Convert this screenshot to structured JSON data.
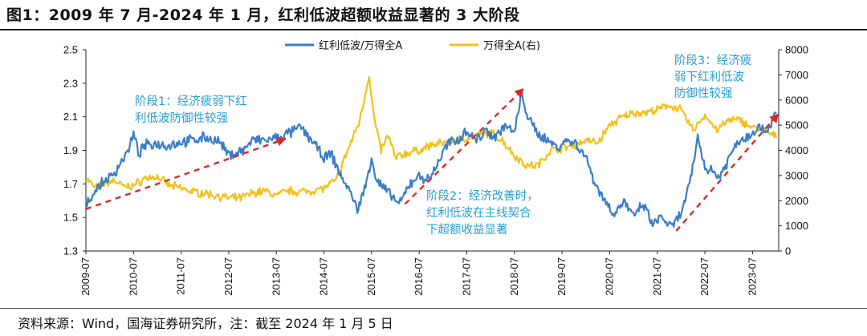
{
  "title": "图1：2009 年 7 月-2024 年 1 月，红利低波超额收益显著的 3 大阶段",
  "source": "资料来源：Wind，国海证券研究所，注：截至 2024 年 1 月 5 日",
  "colors": {
    "series1": "#3a7ec8",
    "series2": "#f2c21b",
    "trend": "#d92a2a",
    "annotation": "#2a9fcf"
  },
  "chart_data": {
    "type": "line",
    "grid": false,
    "legend_position": "top-center",
    "x_tick_labels": [
      "2009-07",
      "2010-07",
      "2011-07",
      "2012-07",
      "2013-07",
      "2014-07",
      "2015-07",
      "2016-07",
      "2017-07",
      "2018-07",
      "2019-07",
      "2020-07",
      "2021-07",
      "2022-07",
      "2023-07"
    ],
    "y_left": {
      "ticks": [
        "1.3",
        "1.5",
        "1.7",
        "1.9",
        "2.1",
        "2.3",
        "2.5"
      ],
      "lim": [
        1.3,
        2.5
      ]
    },
    "y_right": {
      "ticks": [
        "0",
        "1000",
        "2000",
        "3000",
        "4000",
        "5000",
        "6000",
        "7000",
        "8000"
      ],
      "lim": [
        0,
        8000
      ]
    },
    "series": [
      {
        "name": "红利低波/万得全A",
        "axis": "left",
        "points": [
          [
            2009.5,
            1.58
          ],
          [
            2009.7,
            1.66
          ],
          [
            2009.9,
            1.72
          ],
          [
            2010.1,
            1.76
          ],
          [
            2010.25,
            1.84
          ],
          [
            2010.4,
            1.9
          ],
          [
            2010.5,
            2.0
          ],
          [
            2010.6,
            1.88
          ],
          [
            2010.75,
            1.93
          ],
          [
            2011.0,
            1.94
          ],
          [
            2011.25,
            1.93
          ],
          [
            2011.5,
            1.95
          ],
          [
            2011.75,
            1.96
          ],
          [
            2012.0,
            1.98
          ],
          [
            2012.3,
            1.95
          ],
          [
            2012.5,
            1.87
          ],
          [
            2012.8,
            1.9
          ],
          [
            2013.0,
            1.96
          ],
          [
            2013.3,
            1.96
          ],
          [
            2013.6,
            1.98
          ],
          [
            2013.9,
            2.02
          ],
          [
            2014.0,
            2.04
          ],
          [
            2014.25,
            1.96
          ],
          [
            2014.5,
            1.85
          ],
          [
            2014.65,
            1.88
          ],
          [
            2014.85,
            1.75
          ],
          [
            2015.0,
            1.68
          ],
          [
            2015.2,
            1.55
          ],
          [
            2015.35,
            1.66
          ],
          [
            2015.5,
            1.86
          ],
          [
            2015.6,
            1.72
          ],
          [
            2015.75,
            1.68
          ],
          [
            2015.9,
            1.63
          ],
          [
            2016.1,
            1.58
          ],
          [
            2016.3,
            1.7
          ],
          [
            2016.5,
            1.75
          ],
          [
            2016.7,
            1.72
          ],
          [
            2016.9,
            1.83
          ],
          [
            2017.1,
            1.94
          ],
          [
            2017.3,
            1.96
          ],
          [
            2017.5,
            2.02
          ],
          [
            2017.7,
            1.96
          ],
          [
            2017.9,
            2.02
          ],
          [
            2018.1,
            1.98
          ],
          [
            2018.3,
            2.05
          ],
          [
            2018.5,
            2.0
          ],
          [
            2018.65,
            2.24
          ],
          [
            2018.8,
            2.08
          ],
          [
            2019.0,
            2.0
          ],
          [
            2019.2,
            1.96
          ],
          [
            2019.4,
            1.92
          ],
          [
            2019.6,
            1.96
          ],
          [
            2019.8,
            1.94
          ],
          [
            2020.0,
            1.86
          ],
          [
            2020.2,
            1.7
          ],
          [
            2020.4,
            1.6
          ],
          [
            2020.6,
            1.52
          ],
          [
            2020.8,
            1.6
          ],
          [
            2021.0,
            1.5
          ],
          [
            2021.2,
            1.58
          ],
          [
            2021.4,
            1.46
          ],
          [
            2021.6,
            1.5
          ],
          [
            2021.8,
            1.44
          ],
          [
            2022.0,
            1.52
          ],
          [
            2022.2,
            1.72
          ],
          [
            2022.35,
            1.98
          ],
          [
            2022.5,
            1.8
          ],
          [
            2022.65,
            1.78
          ],
          [
            2022.8,
            1.74
          ],
          [
            2023.0,
            1.85
          ],
          [
            2023.2,
            1.96
          ],
          [
            2023.4,
            1.98
          ],
          [
            2023.6,
            2.04
          ],
          [
            2023.8,
            2.02
          ],
          [
            2024.0,
            2.12
          ]
        ]
      },
      {
        "name": "万得全A(右)",
        "axis": "right",
        "points": [
          [
            2009.5,
            2900
          ],
          [
            2009.7,
            2500
          ],
          [
            2009.9,
            2700
          ],
          [
            2010.1,
            2800
          ],
          [
            2010.3,
            2550
          ],
          [
            2010.5,
            2600
          ],
          [
            2010.75,
            2900
          ],
          [
            2011.0,
            2950
          ],
          [
            2011.25,
            2600
          ],
          [
            2011.5,
            2500
          ],
          [
            2011.75,
            2350
          ],
          [
            2012.0,
            2300
          ],
          [
            2012.25,
            2200
          ],
          [
            2012.5,
            2100
          ],
          [
            2012.75,
            2100
          ],
          [
            2013.0,
            2300
          ],
          [
            2013.25,
            2400
          ],
          [
            2013.5,
            2200
          ],
          [
            2013.75,
            2400
          ],
          [
            2014.0,
            2350
          ],
          [
            2014.25,
            2400
          ],
          [
            2014.5,
            2500
          ],
          [
            2014.75,
            2800
          ],
          [
            2015.0,
            4000
          ],
          [
            2015.25,
            5200
          ],
          [
            2015.45,
            7000
          ],
          [
            2015.55,
            5300
          ],
          [
            2015.7,
            4000
          ],
          [
            2015.85,
            4600
          ],
          [
            2016.0,
            3700
          ],
          [
            2016.25,
            3900
          ],
          [
            2016.5,
            4000
          ],
          [
            2016.75,
            4200
          ],
          [
            2017.0,
            4300
          ],
          [
            2017.25,
            4400
          ],
          [
            2017.5,
            4500
          ],
          [
            2017.75,
            4600
          ],
          [
            2018.0,
            4700
          ],
          [
            2018.25,
            4400
          ],
          [
            2018.5,
            3800
          ],
          [
            2018.75,
            3400
          ],
          [
            2019.0,
            3400
          ],
          [
            2019.25,
            4000
          ],
          [
            2019.5,
            4100
          ],
          [
            2019.75,
            4200
          ],
          [
            2020.0,
            4400
          ],
          [
            2020.25,
            4300
          ],
          [
            2020.5,
            5000
          ],
          [
            2020.75,
            5300
          ],
          [
            2021.0,
            5500
          ],
          [
            2021.25,
            5500
          ],
          [
            2021.5,
            5600
          ],
          [
            2021.75,
            5800
          ],
          [
            2022.0,
            5600
          ],
          [
            2022.25,
            4800
          ],
          [
            2022.5,
            5400
          ],
          [
            2022.75,
            4800
          ],
          [
            2023.0,
            5200
          ],
          [
            2023.25,
            5200
          ],
          [
            2023.5,
            4900
          ],
          [
            2023.75,
            4800
          ],
          [
            2024.0,
            4500
          ]
        ]
      }
    ],
    "trendlines": [
      {
        "axis": "left",
        "from": [
          2009.5,
          1.55
        ],
        "to": [
          2013.7,
          1.97
        ]
      },
      {
        "axis": "left",
        "from": [
          2016.2,
          1.58
        ],
        "to": [
          2018.7,
          2.27
        ]
      },
      {
        "axis": "left",
        "from": [
          2021.9,
          1.42
        ],
        "to": [
          2024.05,
          2.12
        ]
      }
    ],
    "annotations": [
      {
        "lines": [
          "阶段1：经济疲弱下红",
          "利低波防御性较强"
        ]
      },
      {
        "lines": [
          "阶段2：经济改善时，",
          "红利低波在主线契合",
          "下超额收益显著"
        ]
      },
      {
        "lines": [
          "阶段3：经济疲",
          "弱下红利低波",
          "防御性较强"
        ]
      }
    ]
  }
}
